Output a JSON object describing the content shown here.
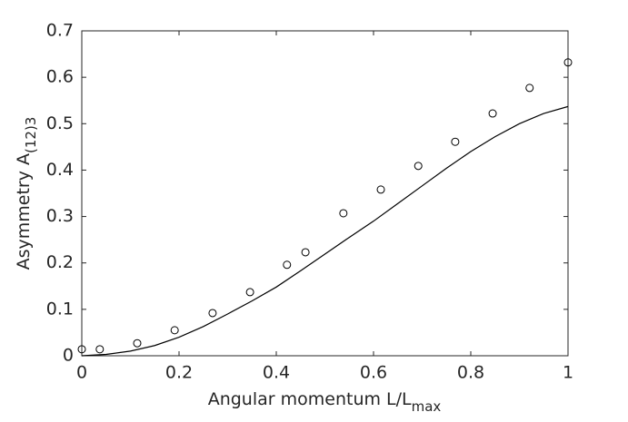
{
  "chart_data": {
    "type": "line",
    "xlabel": "Angular momentum L/L",
    "xlabel_sub": "max",
    "ylabel": "Asymmetry A",
    "ylabel_sub": "(12)3",
    "xlim": [
      0,
      1
    ],
    "xticks": [
      0,
      0.2,
      0.4,
      0.6,
      0.8,
      1
    ],
    "ylim": [
      0,
      0.7
    ],
    "yticks": [
      0,
      0.1,
      0.2,
      0.3,
      0.4,
      0.5,
      0.6,
      0.7
    ],
    "series": [
      {
        "type": "line",
        "color": "#000000",
        "x": [
          0,
          0.05,
          0.1,
          0.15,
          0.2,
          0.25,
          0.3,
          0.35,
          0.4,
          0.45,
          0.5,
          0.55,
          0.6,
          0.65,
          0.7,
          0.75,
          0.8,
          0.85,
          0.9,
          0.95,
          1
        ],
        "values": [
          0,
          0.003,
          0.01,
          0.022,
          0.04,
          0.063,
          0.09,
          0.118,
          0.148,
          0.183,
          0.219,
          0.255,
          0.29,
          0.328,
          0.366,
          0.404,
          0.44,
          0.472,
          0.5,
          0.522,
          0.537
        ]
      },
      {
        "type": "scatter",
        "color": "#000000",
        "x": [
          0,
          0.037,
          0.114,
          0.191,
          0.269,
          0.346,
          0.422,
          0.46,
          0.538,
          0.615,
          0.692,
          0.768,
          0.845,
          0.921,
          1
        ],
        "values": [
          0.014,
          0.014,
          0.027,
          0.055,
          0.092,
          0.137,
          0.196,
          0.223,
          0.307,
          0.358,
          0.409,
          0.461,
          0.522,
          0.577,
          0.632
        ]
      }
    ]
  }
}
